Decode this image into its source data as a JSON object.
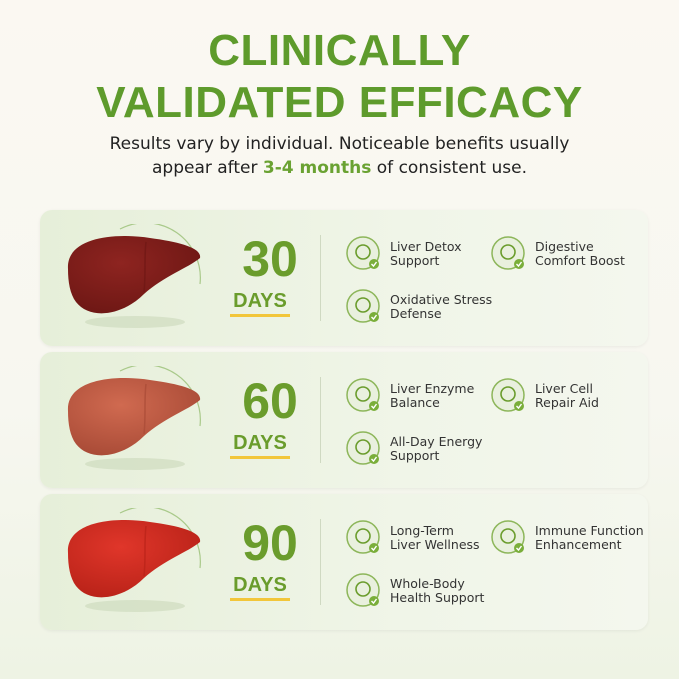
{
  "header": {
    "title_lines": [
      "CLINICALLY",
      "VALIDATED EFFICACY"
    ],
    "subtitle": {
      "before": "Results vary by individual. Noticeable benefits usually appear after ",
      "highlight": "3-4 months",
      "after": " of consistent use."
    }
  },
  "cards": [
    {
      "number": 30,
      "unit": "DAYS",
      "benefits": [
        {
          "lines": [
            "Liver Detox",
            "Support"
          ]
        },
        {
          "lines": [
            "Digestive",
            "Comfort Boost"
          ]
        },
        {
          "lines": [
            "Oxidative Stress",
            "Defense"
          ]
        }
      ]
    },
    {
      "number": 60,
      "unit": "DAYS",
      "benefits": [
        {
          "lines": [
            "Liver Enzyme",
            "Balance"
          ]
        },
        {
          "lines": [
            "Liver Cell",
            "Repair Aid"
          ]
        },
        {
          "lines": [
            "All-Day Energy",
            "Support"
          ]
        }
      ]
    },
    {
      "number": 90,
      "unit": "DAYS",
      "benefits": [
        {
          "lines": [
            "Long-Term",
            "Liver Wellness"
          ]
        },
        {
          "lines": [
            "Immune Function",
            "Enhancement"
          ]
        },
        {
          "lines": [
            "Whole-Body",
            "Health Support"
          ]
        }
      ]
    }
  ]
}
